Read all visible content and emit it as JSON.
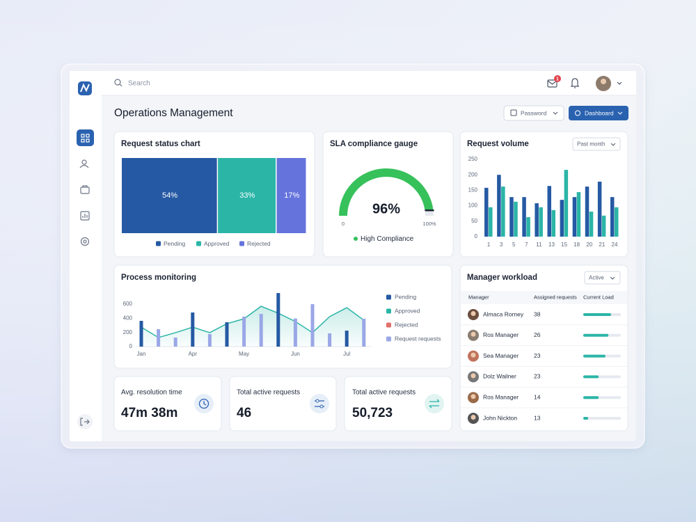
{
  "search_placeholder": "Search",
  "notification_count": 1,
  "page_title": "Operations Management",
  "buttons": [
    "Password",
    "Dashboard"
  ],
  "chart_data": [
    {
      "type": "share-bar",
      "title": "Request status chart",
      "categories": [
        "Pending",
        "Approved",
        "Rejected"
      ],
      "values": [
        54,
        33,
        17
      ],
      "value_labels": [
        "54%",
        "33%",
        "17%"
      ],
      "colors": [
        "#2559a3",
        "#2bb5a7",
        "#6574dc"
      ]
    },
    {
      "type": "gauge",
      "title": "SLA compliance gauge",
      "value": 96,
      "value_label": "96%",
      "ylim": [
        0,
        100
      ],
      "yticks": [
        0,
        {
          "value": 100,
          "label": "100%"
        }
      ],
      "color": "#36c15b",
      "status": "High Compliance"
    },
    {
      "type": "grouped-bar",
      "title": "Request volume",
      "filter": "Past month",
      "categories": [
        "1",
        "3",
        "5",
        "7",
        "11",
        "13",
        "15",
        "18",
        "20",
        "21",
        "24"
      ],
      "series": [
        {
          "color": "#2559a3",
          "values": [
            158,
            200,
            128,
            128,
            108,
            164,
            119,
            128,
            162,
            178,
            128
          ]
        },
        {
          "color": "#2bb5a7",
          "values": [
            95,
            162,
            113,
            63,
            95,
            86,
            216,
            144,
            81,
            68,
            95
          ]
        }
      ],
      "ylim": [
        0,
        250
      ],
      "yticks": [
        0,
        50,
        100,
        150,
        200,
        250
      ]
    },
    {
      "type": "combo",
      "title": "Process monitoring",
      "categories": [
        "Jan",
        null,
        null,
        "Apr",
        null,
        null,
        "May",
        null,
        null,
        "Jun",
        null,
        null,
        "Jul",
        null
      ],
      "series": [
        {
          "name": "Pending",
          "color": "#2559a3",
          "values": [
            364,
            null,
            null,
            482,
            null,
            344,
            null,
            null,
            757,
            null,
            null,
            null,
            226,
            null
          ]
        },
        {
          "name": "Approved",
          "color": "#2bb5a7",
          "values": [
            275,
            128,
            197,
            275,
            197,
            324,
            393,
            570,
            472,
            354,
            197,
            423,
            550,
            373
          ]
        },
        {
          "name": "Rejected",
          "color": "#e2706a",
          "values": [
            null,
            null,
            null,
            null,
            null,
            null,
            null,
            null,
            null,
            null,
            null,
            null,
            null,
            null
          ]
        },
        {
          "name": "Request requests",
          "color": "#9aa7e6",
          "values": [
            null,
            246,
            128,
            null,
            177,
            null,
            423,
            462,
            null,
            397,
            600,
            187,
            null,
            393
          ]
        }
      ],
      "ylim": [
        0,
        800
      ],
      "yticks": [
        0,
        200,
        400,
        600
      ]
    }
  ],
  "kpis": [
    {
      "label": "Avg. resolution time",
      "value": "47m 38m"
    },
    {
      "label": "Total active requests",
      "value": "46"
    },
    {
      "label": "Total active requests",
      "value": "50,723"
    }
  ],
  "workload": {
    "title": "Manager workload",
    "filter": "Active",
    "columns": [
      "Manager",
      "Assigned requests",
      "Current Load"
    ],
    "rows": [
      {
        "name": "Almaca Rorney",
        "assigned": 38,
        "load": 74
      },
      {
        "name": "Ros Manager",
        "assigned": 26,
        "load": 67
      },
      {
        "name": "Sea Manager",
        "assigned": 23,
        "load": 59
      },
      {
        "name": "Dolz Wailner",
        "assigned": 23,
        "load": 41
      },
      {
        "name": "Ros Manager",
        "assigned": 14,
        "load": 41
      },
      {
        "name": "John Nickton",
        "assigned": 13,
        "load": 13
      }
    ]
  }
}
